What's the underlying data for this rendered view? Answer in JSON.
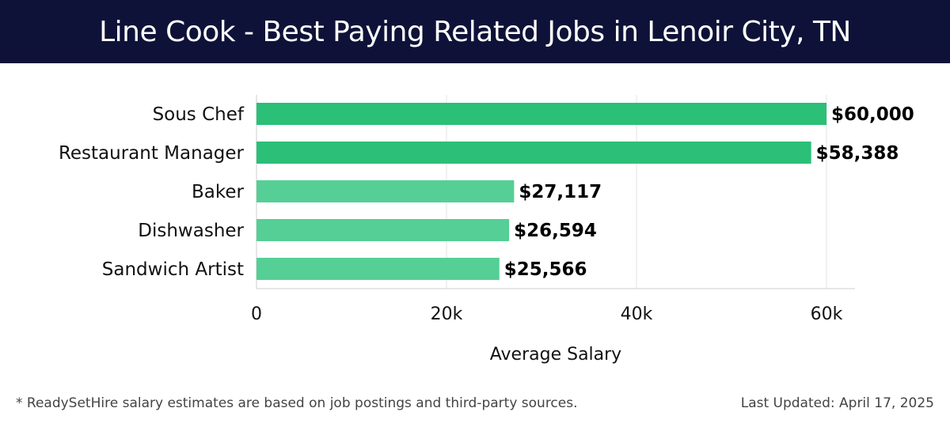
{
  "header": {
    "title": "Line Cook - Best Paying Related Jobs in Lenoir City, TN"
  },
  "footer": {
    "note": "* ReadySetHire salary estimates are based on job postings and third-party sources.",
    "updated": "Last Updated: April 17, 2025"
  },
  "colors": {
    "header_bg": "#0f1238",
    "bar_dark": "#2bbf78",
    "bar_light": "#55cf95"
  },
  "chart_data": {
    "type": "bar",
    "orientation": "horizontal",
    "title": "Line Cook - Best Paying Related Jobs in Lenoir City, TN",
    "categories": [
      "Sous Chef",
      "Restaurant Manager",
      "Baker",
      "Dishwasher",
      "Sandwich Artist"
    ],
    "values": [
      60000,
      58388,
      27117,
      26594,
      25566
    ],
    "value_labels": [
      "$60,000",
      "$58,388",
      "$27,117",
      "$26,594",
      "$25,566"
    ],
    "xlabel": "Average Salary",
    "ylabel": "",
    "xlim": [
      0,
      63000
    ],
    "xticks": [
      0,
      20000,
      40000,
      60000
    ],
    "xtick_labels": [
      "0",
      "20k",
      "40k",
      "60k"
    ],
    "grid": true
  }
}
